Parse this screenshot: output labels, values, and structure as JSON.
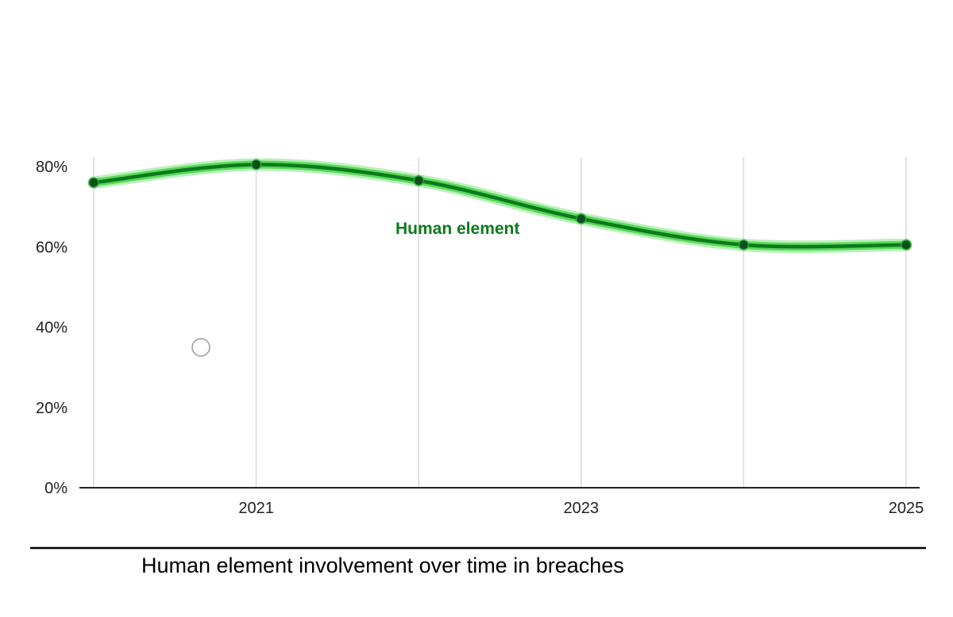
{
  "chart_data": {
    "type": "line",
    "title": "",
    "caption": "Human element involvement over time in breaches",
    "x": [
      2020,
      2021,
      2022,
      2023,
      2024,
      2025
    ],
    "x_tick_labels": [
      "2021",
      "2023",
      "2025"
    ],
    "x_tick_values": [
      2021,
      2023,
      2025
    ],
    "xlim": [
      2020,
      2025
    ],
    "ylim": [
      0,
      80
    ],
    "y_ticks": [
      0,
      20,
      40,
      60,
      80
    ],
    "y_tick_labels": [
      "0%",
      "20%",
      "40%",
      "60%",
      "80%"
    ],
    "grid": true,
    "series": [
      {
        "name": "Human element",
        "color": "#0c7a1c",
        "glow_color": "#3fd43f",
        "values": [
          76,
          80.5,
          76.5,
          67,
          60.5,
          60.5
        ]
      }
    ],
    "xlabel": "",
    "ylabel": ""
  }
}
